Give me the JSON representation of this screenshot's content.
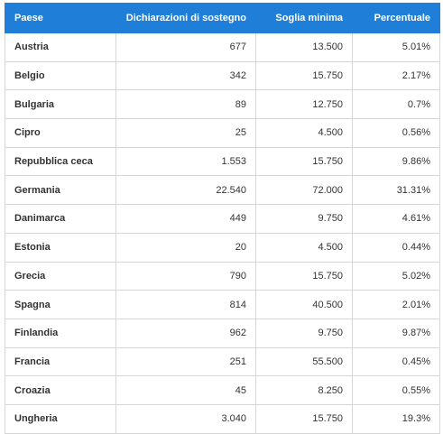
{
  "table": {
    "header": [
      "Paese",
      "Dichiarazioni di sostegno",
      "Soglia minima",
      "Percentuale"
    ],
    "rows": [
      [
        "Austria",
        "677",
        "13.500",
        "5.01%"
      ],
      [
        "Belgio",
        "342",
        "15.750",
        "2.17%"
      ],
      [
        "Bulgaria",
        "89",
        "12.750",
        "0.7%"
      ],
      [
        "Cipro",
        "25",
        "4.500",
        "0.56%"
      ],
      [
        "Repubblica ceca",
        "1.553",
        "15.750",
        "9.86%"
      ],
      [
        "Germania",
        "22.540",
        "72.000",
        "31.31%"
      ],
      [
        "Danimarca",
        "449",
        "9.750",
        "4.61%"
      ],
      [
        "Estonia",
        "20",
        "4.500",
        "0.44%"
      ],
      [
        "Grecia",
        "790",
        "15.750",
        "5.02%"
      ],
      [
        "Spagna",
        "814",
        "40.500",
        "2.01%"
      ],
      [
        "Finlandia",
        "962",
        "9.750",
        "9.87%"
      ],
      [
        "Francia",
        "251",
        "55.500",
        "0.45%"
      ],
      [
        "Croazia",
        "45",
        "8.250",
        "0.55%"
      ],
      [
        "Ungheria",
        "3.040",
        "15.750",
        "19.3%"
      ]
    ]
  }
}
